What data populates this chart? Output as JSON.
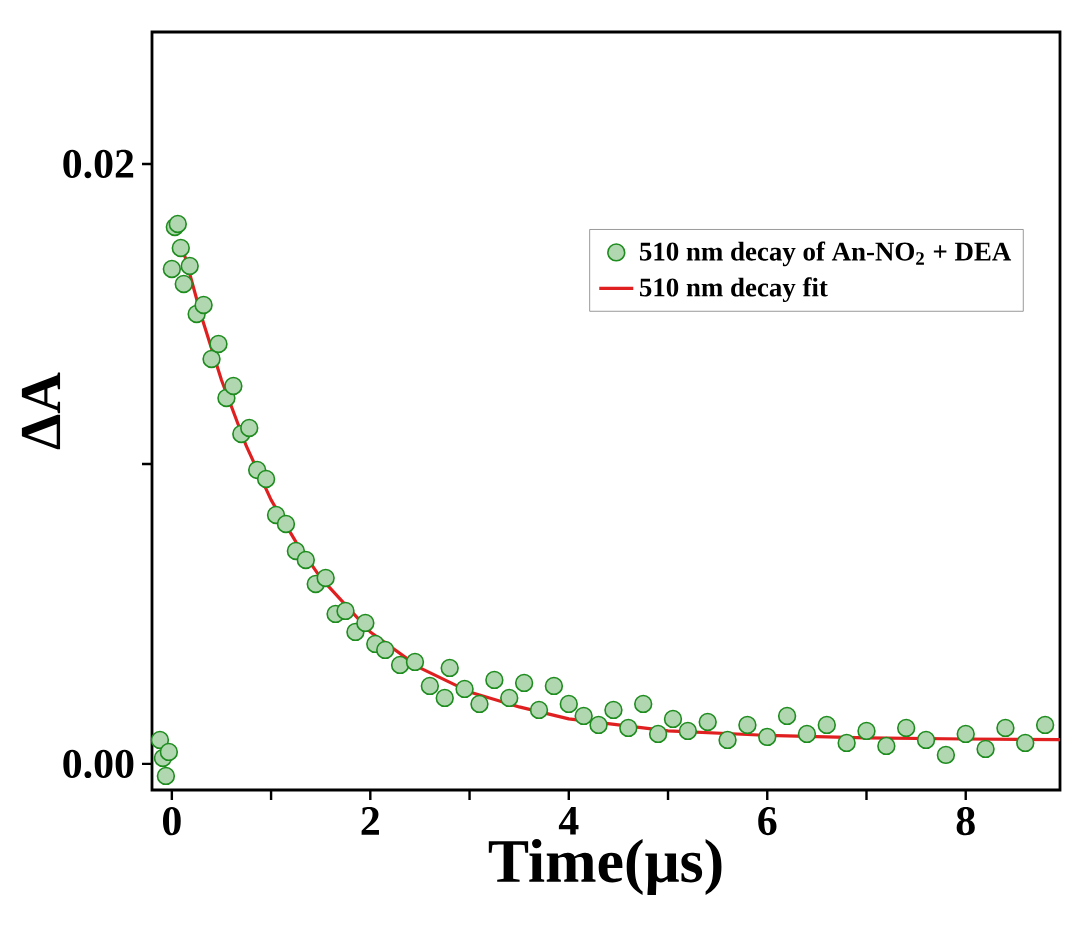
{
  "chart_data": {
    "type": "scatter",
    "xlabel": "Time(μs)",
    "ylabel": "ΔA",
    "xlim": [
      -0.2,
      8.95
    ],
    "ylim": [
      -0.00087,
      0.0244
    ],
    "xticks": [
      0,
      {
        "value": 1,
        "label": null
      },
      2,
      {
        "value": 3,
        "label": null
      },
      4,
      {
        "value": 5,
        "label": null
      },
      6,
      {
        "value": 7,
        "label": null
      },
      8
    ],
    "yticks": [
      {
        "value": 0,
        "label": "0.00"
      },
      {
        "value": 0.01,
        "label": null
      },
      {
        "value": 0.02,
        "label": "0.02"
      }
    ],
    "legend": "top right",
    "grid": false,
    "marker": "circle",
    "series": [
      {
        "name": "510 nm decay of An-NO$_{2}$ + DEA",
        "color": "#1e8c1e",
        "x": [
          -0.12,
          -0.09,
          -0.06,
          -0.03,
          0.0,
          0.03,
          0.06,
          0.09,
          0.12,
          0.18,
          0.25,
          0.32,
          0.4,
          0.47,
          0.55,
          0.62,
          0.7,
          0.78,
          0.86,
          0.95,
          1.05,
          1.15,
          1.25,
          1.35,
          1.45,
          1.55,
          1.65,
          1.75,
          1.85,
          1.95,
          2.05,
          2.15,
          2.3,
          2.45,
          2.6,
          2.75,
          2.8,
          2.95,
          3.1,
          3.25,
          3.4,
          3.55,
          3.7,
          3.85,
          4.0,
          4.15,
          4.3,
          4.45,
          4.6,
          4.75,
          4.9,
          5.05,
          5.2,
          5.4,
          5.6,
          5.8,
          6.0,
          6.2,
          6.4,
          6.6,
          6.8,
          7.0,
          7.2,
          7.4,
          7.6,
          7.8,
          8.0,
          8.2,
          8.4,
          8.6,
          8.8
        ],
        "values": [
          0.0008,
          0.0002,
          -0.0004,
          0.0004,
          0.0165,
          0.0179,
          0.018,
          0.0172,
          0.016,
          0.0166,
          0.015,
          0.0153,
          0.0135,
          0.014,
          0.0122,
          0.0126,
          0.011,
          0.0112,
          0.0098,
          0.0095,
          0.0083,
          0.008,
          0.0071,
          0.0068,
          0.006,
          0.0062,
          0.005,
          0.0051,
          0.0044,
          0.0047,
          0.004,
          0.0038,
          0.0033,
          0.0034,
          0.0026,
          0.0022,
          0.0032,
          0.0025,
          0.002,
          0.0028,
          0.0022,
          0.0027,
          0.0018,
          0.0026,
          0.002,
          0.0016,
          0.0013,
          0.0018,
          0.0012,
          0.002,
          0.001,
          0.0015,
          0.0011,
          0.0014,
          0.0008,
          0.0013,
          0.0009,
          0.0016,
          0.001,
          0.0013,
          0.0007,
          0.0011,
          0.0006,
          0.0012,
          0.0008,
          0.0003,
          0.001,
          0.0005,
          0.0012,
          0.0007,
          0.0013
        ]
      },
      {
        "name": "510 nm decay fit",
        "type": "line",
        "marker": "none",
        "color": "#e02020",
        "line_style": "solid",
        "x": [
          0.1,
          0.3,
          0.5,
          0.75,
          1,
          1.25,
          1.5,
          2,
          2.5,
          3,
          3.5,
          4,
          5,
          6,
          7,
          8,
          8.95
        ],
        "values": [
          0.0173,
          0.0149,
          0.0128,
          0.0106,
          0.0088,
          0.0074,
          0.0062,
          0.0044,
          0.0032,
          0.0024,
          0.0019,
          0.0015,
          0.0011,
          0.00095,
          0.00087,
          0.00083,
          0.00081
        ]
      }
    ]
  }
}
